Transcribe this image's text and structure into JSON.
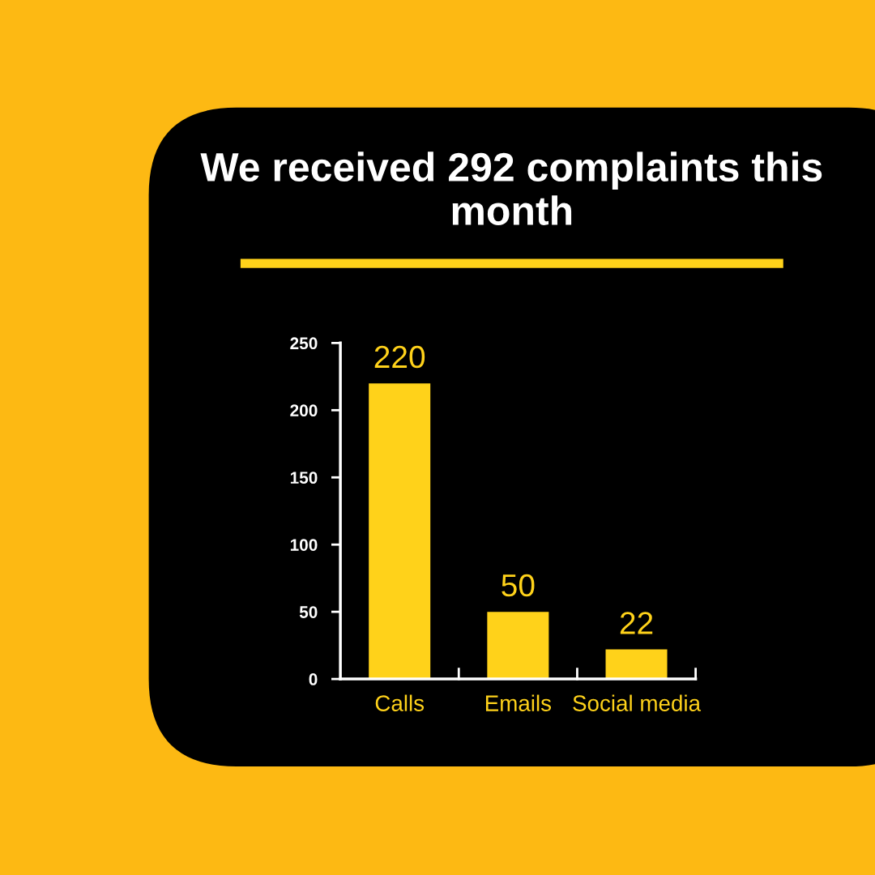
{
  "chart_data": {
    "type": "bar",
    "title": "We received 292 complaints this month",
    "categories": [
      "Calls",
      "Emails",
      "Social media"
    ],
    "values": [
      220,
      50,
      22
    ],
    "color": "#ffd21a",
    "ylim": [
      0,
      250
    ],
    "yticks": [
      0,
      50,
      100,
      150,
      200,
      250
    ],
    "grid": false,
    "data_labels": true
  }
}
